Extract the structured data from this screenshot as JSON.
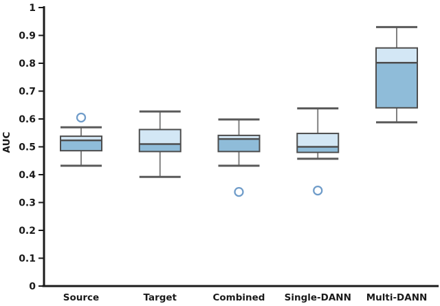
{
  "figure": {
    "title": "",
    "background": "#ffffff"
  },
  "chart_data": {
    "type": "box",
    "title": "",
    "xlabel": "",
    "ylabel": "AUC",
    "ylim": [
      0,
      1
    ],
    "grid": false,
    "legend": null,
    "yticks": [
      {
        "value": 0,
        "label": "0"
      },
      {
        "value": 0.1,
        "label": "0.1"
      },
      {
        "value": 0.2,
        "label": "0.2"
      },
      {
        "value": 0.3,
        "label": "0.3"
      },
      {
        "value": 0.4,
        "label": "0.4"
      },
      {
        "value": 0.5,
        "label": "0.5"
      },
      {
        "value": 0.6,
        "label": "0.6"
      },
      {
        "value": 0.7,
        "label": "0.7"
      },
      {
        "value": 0.8,
        "label": "0.8"
      },
      {
        "value": 0.9,
        "label": "0.9"
      },
      {
        "value": 1,
        "label": "1"
      }
    ],
    "categories": [
      "Source",
      "Target",
      "Combined",
      "Single-DANN",
      "Multi-DANN"
    ],
    "series": [
      {
        "name": "Source",
        "whisker_low": 0.432,
        "q1": 0.486,
        "median": 0.523,
        "q3": 0.538,
        "whisker_high": 0.57,
        "outliers": [
          0.605
        ]
      },
      {
        "name": "Target",
        "whisker_low": 0.392,
        "q1": 0.483,
        "median": 0.51,
        "q3": 0.562,
        "whisker_high": 0.627,
        "outliers": []
      },
      {
        "name": "Combined",
        "whisker_low": 0.432,
        "q1": 0.483,
        "median": 0.528,
        "q3": 0.541,
        "whisker_high": 0.598,
        "outliers": [
          0.338
        ]
      },
      {
        "name": "Single-DANN",
        "whisker_low": 0.457,
        "q1": 0.48,
        "median": 0.5,
        "q3": 0.548,
        "whisker_high": 0.638,
        "outliers": [
          0.343
        ]
      },
      {
        "name": "Multi-DANN",
        "whisker_low": 0.588,
        "q1": 0.64,
        "median": 0.802,
        "q3": 0.855,
        "whisker_high": 0.93,
        "outliers": []
      }
    ],
    "colors": {
      "box_fill_upper": "#d3e7f5",
      "box_fill_lower": "#8fbcd9",
      "box_border": "#4d4d4d",
      "median_line": "#4d4d4d",
      "whisker_line": "#808080",
      "whisker_cap": "#595959",
      "outlier_stroke": "#6f9cc9",
      "axis": "#1a1a1a",
      "text": "#1a1a1a"
    }
  }
}
